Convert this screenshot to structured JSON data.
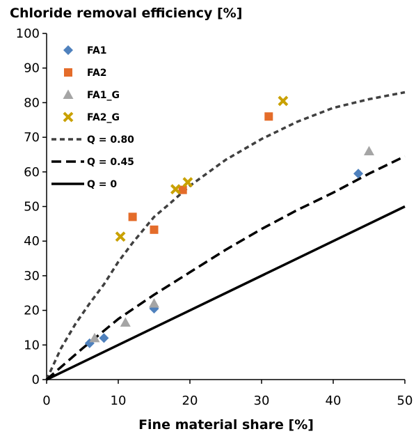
{
  "chart_data": {
    "type": "scatter",
    "title": "",
    "ylabel": "Chloride removal efficiency [%]",
    "xlabel": "Fine material share [%]",
    "xlim": [
      0,
      50
    ],
    "ylim": [
      0,
      100
    ],
    "xticks": [
      0,
      10,
      20,
      30,
      40,
      50
    ],
    "yticks": [
      0,
      10,
      20,
      30,
      40,
      50,
      60,
      70,
      80,
      90,
      100
    ],
    "grid": false,
    "legend_position": "top-left",
    "series": [
      {
        "name": "FA1",
        "marker": "diamond",
        "color": "#4f81bd",
        "points": [
          [
            6,
            10.5
          ],
          [
            8,
            12
          ],
          [
            15,
            20.5
          ],
          [
            43.5,
            59.5
          ]
        ]
      },
      {
        "name": "FA2",
        "marker": "square",
        "color": "#e46c2a",
        "points": [
          [
            12,
            47
          ],
          [
            15,
            43.3
          ],
          [
            19,
            54.8
          ],
          [
            31,
            76
          ]
        ]
      },
      {
        "name": "FA1_G",
        "marker": "triangle",
        "color": "#a5a5a5",
        "points": [
          [
            6.7,
            12
          ],
          [
            11,
            16.5
          ],
          [
            15,
            22
          ],
          [
            45,
            66
          ]
        ]
      },
      {
        "name": "FA2_G",
        "marker": "cross",
        "color": "#c9a100",
        "points": [
          [
            10.3,
            41.3
          ],
          [
            18,
            55
          ],
          [
            19.7,
            57
          ],
          [
            33,
            80.5
          ]
        ]
      }
    ],
    "curves": [
      {
        "name": "Q = 0.80",
        "style": "short-dash",
        "color": "#404040",
        "points": [
          [
            0,
            0
          ],
          [
            2,
            9
          ],
          [
            4,
            16
          ],
          [
            6,
            22
          ],
          [
            8,
            27.5
          ],
          [
            10,
            34
          ],
          [
            12,
            39.5
          ],
          [
            14,
            44.5
          ],
          [
            15,
            47
          ],
          [
            17,
            50.5
          ],
          [
            20,
            56
          ],
          [
            25,
            63.5
          ],
          [
            30,
            69.5
          ],
          [
            35,
            74.5
          ],
          [
            40,
            78.5
          ],
          [
            45,
            81
          ],
          [
            50,
            83
          ]
        ]
      },
      {
        "name": "Q = 0.45",
        "style": "long-dash",
        "color": "#000000",
        "points": [
          [
            0,
            0
          ],
          [
            5,
            9
          ],
          [
            10,
            17.5
          ],
          [
            15,
            24.5
          ],
          [
            20,
            31
          ],
          [
            25,
            37.5
          ],
          [
            30,
            43.5
          ],
          [
            35,
            49
          ],
          [
            40,
            54
          ],
          [
            45,
            59.5
          ],
          [
            50,
            64.5
          ]
        ]
      },
      {
        "name": "Q = 0",
        "style": "solid",
        "color": "#000000",
        "points": [
          [
            0,
            0
          ],
          [
            50,
            50
          ]
        ]
      }
    ]
  }
}
